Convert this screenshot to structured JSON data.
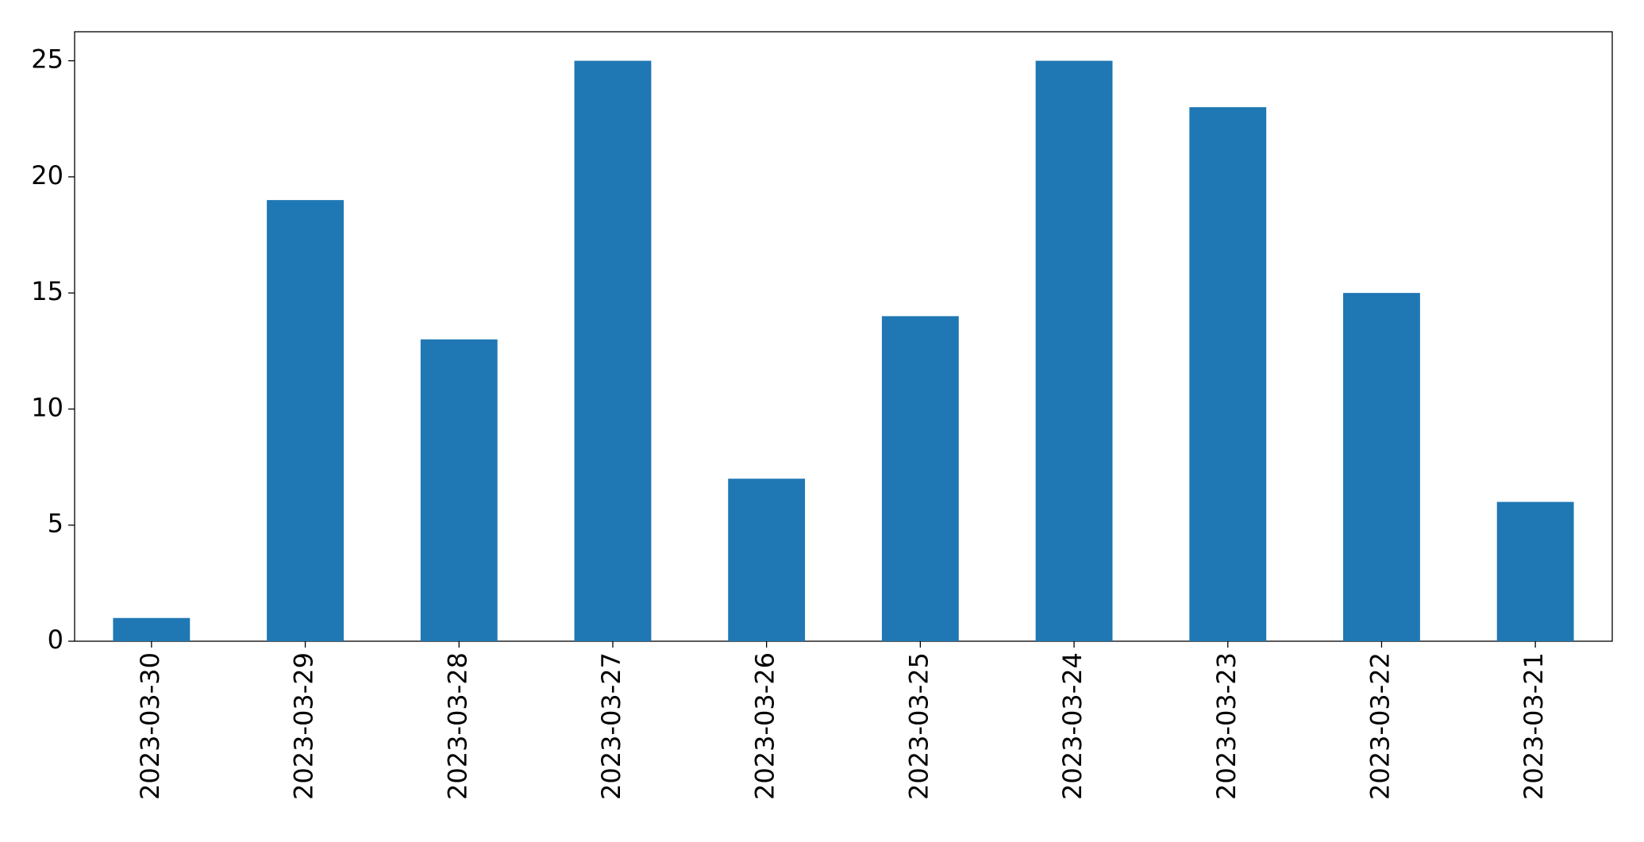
{
  "chart_data": {
    "type": "bar",
    "categories": [
      "2023-03-30",
      "2023-03-29",
      "2023-03-28",
      "2023-03-27",
      "2023-03-26",
      "2023-03-25",
      "2023-03-24",
      "2023-03-23",
      "2023-03-22",
      "2023-03-21"
    ],
    "values": [
      1,
      19,
      13,
      25,
      7,
      14,
      25,
      23,
      15,
      6
    ],
    "color": "#1f77b4",
    "ylim": [
      0,
      26.25
    ],
    "yticks": [
      0,
      5,
      10,
      15,
      20,
      25
    ],
    "grid": false
  }
}
